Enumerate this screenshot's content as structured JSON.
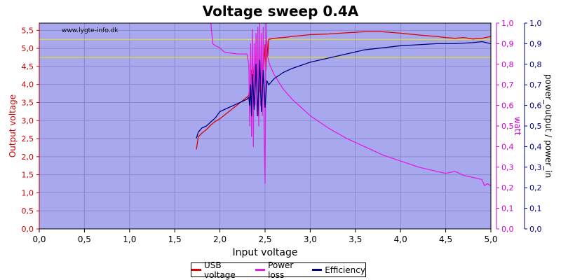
{
  "chart_data": {
    "type": "line",
    "title": "Voltage sweep 0.4A",
    "watermark": "www.lygte-info.dk",
    "xlabel": "Input voltage",
    "ylabel_left": "Output voltage",
    "ylabel_right1": "watt",
    "ylabel_right2": "power_output / power_in",
    "xlim": [
      0,
      5
    ],
    "ylim_left": [
      0,
      5.7
    ],
    "ylim_right": [
      0,
      1
    ],
    "x_ticks": [
      "0,0",
      "0,5",
      "1,0",
      "1,5",
      "2,0",
      "2,5",
      "3,0",
      "3,5",
      "4,0",
      "4,5",
      "5,0"
    ],
    "y_left_ticks": [
      "0,0",
      "0,5",
      "1,0",
      "1,5",
      "2,0",
      "2,5",
      "3,0",
      "3,5",
      "4,0",
      "4,5",
      "5,0",
      "5,5"
    ],
    "y_right1_ticks": [
      "0,0",
      "0,1",
      "0,2",
      "0,3",
      "0,4",
      "0,5",
      "0,6",
      "0,7",
      "0,8",
      "0,9",
      "1,0"
    ],
    "y_right2_ticks": [
      "0,0",
      "0,1",
      "0,2",
      "0,3",
      "0,4",
      "0,5",
      "0,6",
      "0,7",
      "0,8",
      "0,9",
      "1,0"
    ],
    "reference_lines": [
      5.25,
      4.75
    ],
    "colors": {
      "plot_bg": "#a8a8ee",
      "usb": "#e00000",
      "loss": "#e020e0",
      "eff": "#000080",
      "ref": "#e8e800",
      "left_axis": "#cc0000",
      "right1_axis": "#cc00cc",
      "right2_axis": "#000080"
    },
    "series": [
      {
        "name": "USB voltage",
        "axis": "left",
        "color": "#e00000",
        "points": [
          [
            1.74,
            2.2
          ],
          [
            1.76,
            2.55
          ],
          [
            1.8,
            2.65
          ],
          [
            1.85,
            2.75
          ],
          [
            1.9,
            2.88
          ],
          [
            1.95,
            2.98
          ],
          [
            2.0,
            3.05
          ],
          [
            2.05,
            3.15
          ],
          [
            2.1,
            3.25
          ],
          [
            2.15,
            3.35
          ],
          [
            2.2,
            3.45
          ],
          [
            2.25,
            3.55
          ],
          [
            2.3,
            3.65
          ],
          [
            2.32,
            3.7
          ],
          [
            2.33,
            3.9
          ],
          [
            2.34,
            3.6
          ],
          [
            2.35,
            4.4
          ],
          [
            2.36,
            3.85
          ],
          [
            2.38,
            4.6
          ],
          [
            2.4,
            4.2
          ],
          [
            2.42,
            4.5
          ],
          [
            2.44,
            3.8
          ],
          [
            2.46,
            4.65
          ],
          [
            2.48,
            4.3
          ],
          [
            2.5,
            5.1
          ],
          [
            2.51,
            4.4
          ],
          [
            2.52,
            5.2
          ],
          [
            2.53,
            4.8
          ],
          [
            2.54,
            5.25
          ],
          [
            2.6,
            5.28
          ],
          [
            2.7,
            5.3
          ],
          [
            2.8,
            5.33
          ],
          [
            3.0,
            5.38
          ],
          [
            3.2,
            5.4
          ],
          [
            3.4,
            5.43
          ],
          [
            3.6,
            5.46
          ],
          [
            3.8,
            5.46
          ],
          [
            4.0,
            5.42
          ],
          [
            4.2,
            5.37
          ],
          [
            4.4,
            5.33
          ],
          [
            4.5,
            5.3
          ],
          [
            4.6,
            5.28
          ],
          [
            4.7,
            5.3
          ],
          [
            4.8,
            5.26
          ],
          [
            4.9,
            5.28
          ],
          [
            5.0,
            5.33
          ]
        ]
      },
      {
        "name": "Power loss",
        "axis": "right",
        "color": "#e020e0",
        "points": [
          [
            1.9,
            1.0
          ],
          [
            1.92,
            0.9
          ],
          [
            1.95,
            0.89
          ],
          [
            2.0,
            0.88
          ],
          [
            2.02,
            0.87
          ],
          [
            2.05,
            0.86
          ],
          [
            2.1,
            0.855
          ],
          [
            2.2,
            0.85
          ],
          [
            2.3,
            0.85
          ],
          [
            2.32,
            0.8
          ],
          [
            2.33,
            0.5
          ],
          [
            2.34,
            0.9
          ],
          [
            2.35,
            0.45
          ],
          [
            2.36,
            0.97
          ],
          [
            2.37,
            0.4
          ],
          [
            2.38,
            0.9
          ],
          [
            2.39,
            0.6
          ],
          [
            2.4,
            0.95
          ],
          [
            2.41,
            0.55
          ],
          [
            2.42,
            0.98
          ],
          [
            2.43,
            0.5
          ],
          [
            2.44,
            1.0
          ],
          [
            2.45,
            0.6
          ],
          [
            2.46,
            0.95
          ],
          [
            2.47,
            0.55
          ],
          [
            2.48,
            0.98
          ],
          [
            2.49,
            0.45
          ],
          [
            2.5,
            0.22
          ],
          [
            2.51,
            1.0
          ],
          [
            2.52,
            0.85
          ],
          [
            2.55,
            0.8
          ],
          [
            2.6,
            0.75
          ],
          [
            2.7,
            0.68
          ],
          [
            2.8,
            0.63
          ],
          [
            2.9,
            0.59
          ],
          [
            3.0,
            0.55
          ],
          [
            3.2,
            0.49
          ],
          [
            3.4,
            0.44
          ],
          [
            3.6,
            0.4
          ],
          [
            3.8,
            0.36
          ],
          [
            4.0,
            0.33
          ],
          [
            4.2,
            0.3
          ],
          [
            4.4,
            0.28
          ],
          [
            4.5,
            0.27
          ],
          [
            4.6,
            0.28
          ],
          [
            4.7,
            0.26
          ],
          [
            4.8,
            0.25
          ],
          [
            4.9,
            0.24
          ],
          [
            4.93,
            0.21
          ],
          [
            4.96,
            0.22
          ],
          [
            5.0,
            0.21
          ]
        ]
      },
      {
        "name": "Efficiency",
        "axis": "right",
        "color": "#000080",
        "points": [
          [
            1.74,
            0.44
          ],
          [
            1.76,
            0.47
          ],
          [
            1.8,
            0.49
          ],
          [
            1.85,
            0.5
          ],
          [
            1.9,
            0.52
          ],
          [
            1.95,
            0.54
          ],
          [
            2.0,
            0.57
          ],
          [
            2.1,
            0.59
          ],
          [
            2.2,
            0.61
          ],
          [
            2.3,
            0.63
          ],
          [
            2.32,
            0.64
          ],
          [
            2.33,
            0.6
          ],
          [
            2.34,
            0.7
          ],
          [
            2.35,
            0.55
          ],
          [
            2.36,
            0.75
          ],
          [
            2.38,
            0.58
          ],
          [
            2.4,
            0.8
          ],
          [
            2.42,
            0.55
          ],
          [
            2.44,
            0.82
          ],
          [
            2.46,
            0.57
          ],
          [
            2.48,
            0.77
          ],
          [
            2.5,
            0.59
          ],
          [
            2.52,
            0.72
          ],
          [
            2.54,
            0.7
          ],
          [
            2.6,
            0.73
          ],
          [
            2.7,
            0.76
          ],
          [
            2.8,
            0.78
          ],
          [
            3.0,
            0.81
          ],
          [
            3.2,
            0.83
          ],
          [
            3.4,
            0.85
          ],
          [
            3.6,
            0.87
          ],
          [
            3.8,
            0.88
          ],
          [
            4.0,
            0.89
          ],
          [
            4.2,
            0.895
          ],
          [
            4.4,
            0.9
          ],
          [
            4.6,
            0.9
          ],
          [
            4.8,
            0.905
          ],
          [
            4.9,
            0.91
          ],
          [
            5.0,
            0.9
          ]
        ]
      }
    ],
    "legend": [
      "USB voltage",
      "Power loss",
      "Efficiency"
    ]
  }
}
